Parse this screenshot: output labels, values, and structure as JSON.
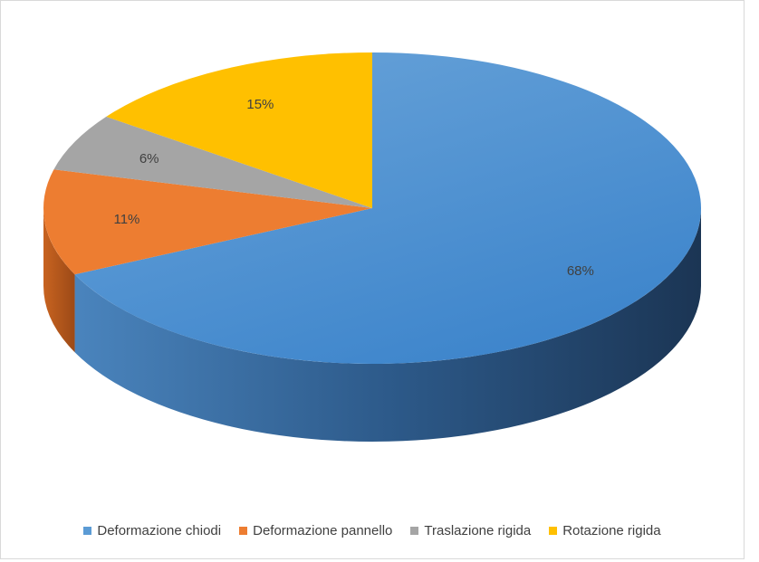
{
  "chart_data": {
    "type": "pie",
    "style": "3d",
    "title": "",
    "slices": [
      {
        "label": "Deformazione chiodi",
        "value": 68,
        "display": "68%",
        "color": "#5b9bd5"
      },
      {
        "label": "Deformazione pannello",
        "value": 11,
        "display": "11%",
        "color": "#ed7d31"
      },
      {
        "label": "Traslazione rigida",
        "value": 6,
        "display": "6%",
        "color": "#a5a5a5"
      },
      {
        "label": "Rotazione rigida",
        "value": 15,
        "display": "15%",
        "color": "#ffc000"
      }
    ],
    "legend_position": "bottom"
  }
}
